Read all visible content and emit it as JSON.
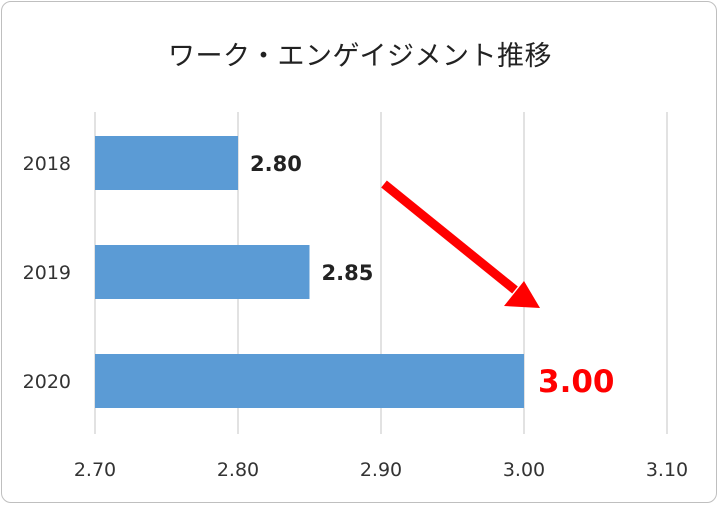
{
  "chart_data": {
    "type": "bar",
    "orientation": "horizontal",
    "title": "ワーク・エンゲイジメント推移",
    "categories": [
      "2018",
      "2019",
      "2020"
    ],
    "values": [
      2.8,
      2.85,
      3.0
    ],
    "data_labels": [
      "2.80",
      "2.85",
      "3.00"
    ],
    "highlight_index": 2,
    "xlim": [
      2.7,
      3.1
    ],
    "xticks": [
      "2.70",
      "2.80",
      "2.90",
      "3.00",
      "3.10"
    ],
    "xlabel": "",
    "ylabel": "",
    "grid": true,
    "legend": "none",
    "annotation": "red arrow pointing down-right toward 2020 bar",
    "colors": {
      "bar": "#5b9bd5",
      "highlight": "#ff0000",
      "grid": "#d9d9d9"
    }
  }
}
